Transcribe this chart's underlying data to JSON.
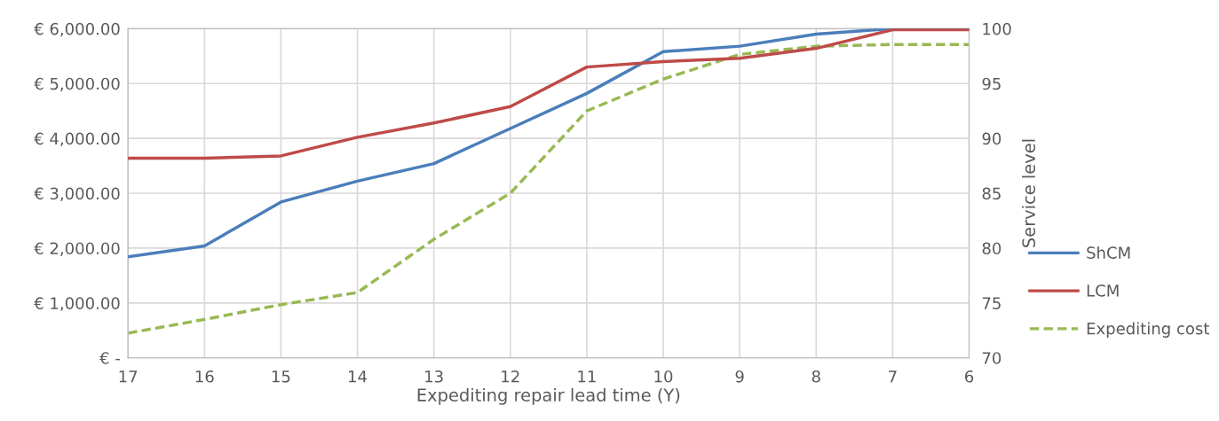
{
  "chart_data": {
    "type": "line",
    "xlabel": "Expediting repair lead time (Y)",
    "y2label": "Service level",
    "categories": [
      "17",
      "16",
      "15",
      "14",
      "13",
      "12",
      "11",
      "10",
      "9",
      "8",
      "7",
      "6"
    ],
    "series": [
      {
        "name": "ShCM",
        "color": "#4a7ebb",
        "axis": "y2",
        "line_style": "solid",
        "values": [
          79.2,
          80.2,
          84.2,
          86.1,
          87.7,
          90.9,
          94.1,
          97.9,
          98.4,
          99.5,
          100,
          100
        ]
      },
      {
        "name": "LCM",
        "color": "#be4b48",
        "axis": "y2",
        "line_style": "solid",
        "values": [
          88.2,
          88.2,
          88.4,
          90.1,
          91.4,
          92.9,
          96.5,
          97.0,
          97.3,
          98.2,
          99.9,
          99.9
        ]
      },
      {
        "name": "Expediting cost",
        "color": "#98b954",
        "axis": "y",
        "line_style": "dashed",
        "values": [
          450,
          700,
          970,
          1190,
          2160,
          3000,
          4500,
          5080,
          5530,
          5680,
          5710,
          5710
        ]
      }
    ],
    "ylim": [
      0,
      6000
    ],
    "yticks": [
      {
        "value": 0,
        "label": "€ -"
      },
      {
        "value": 1000,
        "label": "€ 1,000.00"
      },
      {
        "value": 2000,
        "label": "€ 2,000.00"
      },
      {
        "value": 3000,
        "label": "€ 3,000.00"
      },
      {
        "value": 4000,
        "label": "€ 4,000.00"
      },
      {
        "value": 5000,
        "label": "€ 5,000.00"
      },
      {
        "value": 6000,
        "label": "€ 6,000.00"
      }
    ],
    "y2lim": [
      70,
      100
    ],
    "y2ticks": [
      70,
      75,
      80,
      85,
      90,
      95,
      100
    ],
    "grid": true,
    "legend": "right",
    "marker": "none"
  }
}
